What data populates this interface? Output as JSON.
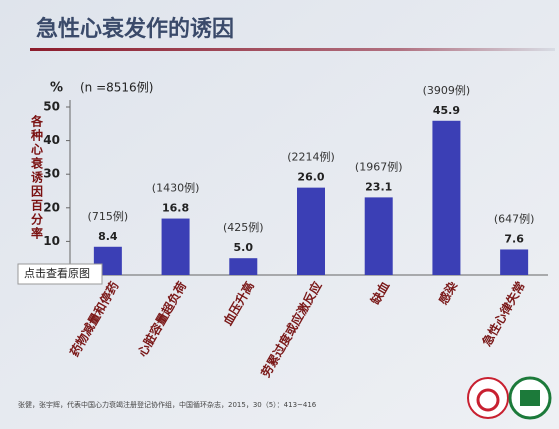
{
  "chart_data": {
    "type": "bar",
    "title": "急性心衰发作的诱因",
    "y_unit": "%",
    "sample_note": "(n =8516例)",
    "ylabel": "各种心衰诱因百分率",
    "categories": [
      "药物减量和停药",
      "心脏容量超负荷",
      "血压升高",
      "劳累过度或应激反应",
      "缺血",
      "感染",
      "急性心律失常"
    ],
    "values": [
      8.4,
      16.8,
      5.0,
      26.0,
      23.1,
      45.9,
      7.6
    ],
    "value_labels": [
      "8.4",
      "16.8",
      "5.0",
      "26.0",
      "23.1",
      "45.9",
      "7.6"
    ],
    "annotations": [
      "(715例)",
      "(1430例)",
      "(425例)",
      "(2214例)",
      "(1967例)",
      "(3909例)",
      "(647例)"
    ],
    "color": "#3b3fb5",
    "ylim": [
      0,
      50
    ],
    "yticks": [
      10,
      20,
      30,
      40,
      50
    ],
    "grid": false,
    "source": "张健，张宇辉，代表中国心力衰竭注册登记协作组，中国循环杂志，2015，30（5）：413~416",
    "popup": "点击查看原图"
  }
}
